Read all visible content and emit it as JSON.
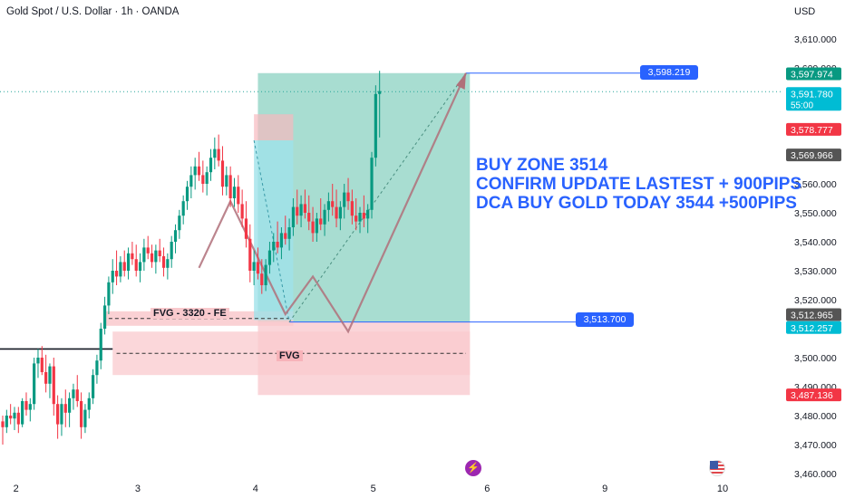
{
  "header": {
    "title": "Gold Spot / U.S. Dollar · 1h · OANDA",
    "currency": "USD"
  },
  "annotations": {
    "fvg_upper_label": "FVG - 3320 - FE",
    "fvg_lower_label": "FVG",
    "promo_lines": [
      "BUY ZONE 3514",
      "CONFIRM UPDATE LASTEST + 900PIPS",
      "DCA BUY GOLD TODAY 3544 +500PIPS"
    ],
    "target_label": "3,598.219",
    "entry_label": "3,513.700"
  },
  "price_badges": [
    {
      "value": "3,597.974",
      "color": "#089981",
      "sub": ""
    },
    {
      "value": "3,591.780",
      "color": "#00bcd4",
      "sub": "55:00"
    },
    {
      "value": "3,578.777",
      "color": "#f23645",
      "sub": ""
    },
    {
      "value": "3,569.966",
      "color": "#555555",
      "sub": ""
    },
    {
      "value": "3,512.965",
      "color": "#555555",
      "sub": ""
    },
    {
      "value": "3,512.257",
      "color": "#00bcd4",
      "sub": ""
    },
    {
      "value": "3,487.136",
      "color": "#f23645",
      "sub": ""
    }
  ],
  "colors": {
    "up": "#089981",
    "down": "#f23645",
    "target_zone": "#9fd9cc",
    "stop_zone": "#f7b9bf",
    "fvg_zone": "#f9c9cd",
    "accent_blue": "#2962ff",
    "text_blue": "#2962ff",
    "path": "#b0707a"
  },
  "icons": [
    "lightning-event-icon",
    "us-flag-icon"
  ],
  "chart_data": {
    "type": "candlestick",
    "symbol": "Gold Spot / U.S. Dollar",
    "interval": "1h",
    "ylim": [
      3460,
      3615
    ],
    "y_ticks": [
      3460,
      3470,
      3480,
      3490,
      3500,
      3510,
      3520,
      3530,
      3540,
      3550,
      3560,
      3570,
      3580,
      3590,
      3600,
      3610
    ],
    "y_tick_labels": [
      "3,460.000",
      "3,470.000",
      "3,480.000",
      "3,490.000",
      "3,500.000",
      "3,510.000",
      "3,520.000",
      "3,530.000",
      "3,540.000",
      "3,550.000",
      "3,560.000",
      "3,570.000",
      "3,580.000",
      "3,590.000",
      "3,600.000",
      "3,610.000"
    ],
    "x_tick_labels": [
      "2",
      "3",
      "4",
      "5",
      "6",
      "9",
      "10"
    ],
    "x_tick_index": [
      2,
      33,
      63,
      93,
      122,
      152,
      182
    ],
    "candles": [
      [
        3478,
        3480,
        3470,
        3476
      ],
      [
        3476,
        3482,
        3474,
        3480
      ],
      [
        3480,
        3484,
        3477,
        3479
      ],
      [
        3479,
        3483,
        3475,
        3481
      ],
      [
        3481,
        3483,
        3474,
        3477
      ],
      [
        3477,
        3486,
        3476,
        3485
      ],
      [
        3485,
        3488,
        3480,
        3482
      ],
      [
        3482,
        3486,
        3478,
        3484
      ],
      [
        3484,
        3500,
        3482,
        3498
      ],
      [
        3498,
        3503,
        3493,
        3500
      ],
      [
        3500,
        3504,
        3494,
        3495
      ],
      [
        3495,
        3501,
        3488,
        3491
      ],
      [
        3491,
        3498,
        3486,
        3497
      ],
      [
        3497,
        3500,
        3480,
        3484
      ],
      [
        3484,
        3487,
        3472,
        3477
      ],
      [
        3477,
        3486,
        3473,
        3484
      ],
      [
        3484,
        3489,
        3476,
        3481
      ],
      [
        3481,
        3488,
        3476,
        3486
      ],
      [
        3486,
        3491,
        3482,
        3489
      ],
      [
        3489,
        3494,
        3483,
        3485
      ],
      [
        3485,
        3488,
        3472,
        3476
      ],
      [
        3476,
        3484,
        3474,
        3482
      ],
      [
        3482,
        3488,
        3479,
        3486
      ],
      [
        3486,
        3496,
        3484,
        3494
      ],
      [
        3494,
        3501,
        3491,
        3499
      ],
      [
        3499,
        3512,
        3496,
        3510
      ],
      [
        3510,
        3521,
        3508,
        3518
      ],
      [
        3518,
        3528,
        3515,
        3526
      ],
      [
        3526,
        3534,
        3522,
        3530
      ],
      [
        3530,
        3537,
        3525,
        3528
      ],
      [
        3528,
        3535,
        3526,
        3533
      ],
      [
        3533,
        3537,
        3528,
        3530
      ],
      [
        3530,
        3538,
        3527,
        3536
      ],
      [
        3536,
        3540,
        3532,
        3534
      ],
      [
        3534,
        3539,
        3528,
        3530
      ],
      [
        3530,
        3536,
        3526,
        3533
      ],
      [
        3533,
        3541,
        3530,
        3538
      ],
      [
        3538,
        3542,
        3534,
        3536
      ],
      [
        3536,
        3539,
        3531,
        3533
      ],
      [
        3533,
        3539,
        3529,
        3537
      ],
      [
        3537,
        3541,
        3533,
        3535
      ],
      [
        3535,
        3538,
        3528,
        3531
      ],
      [
        3531,
        3536,
        3527,
        3534
      ],
      [
        3534,
        3542,
        3531,
        3540
      ],
      [
        3540,
        3546,
        3536,
        3544
      ],
      [
        3544,
        3551,
        3541,
        3549
      ],
      [
        3549,
        3556,
        3546,
        3554
      ],
      [
        3554,
        3561,
        3551,
        3559
      ],
      [
        3559,
        3566,
        3555,
        3563
      ],
      [
        3563,
        3569,
        3558,
        3566
      ],
      [
        3566,
        3571,
        3561,
        3563
      ],
      [
        3563,
        3568,
        3557,
        3560
      ],
      [
        3560,
        3566,
        3556,
        3564
      ],
      [
        3564,
        3572,
        3561,
        3569
      ],
      [
        3569,
        3576,
        3565,
        3572
      ],
      [
        3572,
        3577,
        3566,
        3568
      ],
      [
        3568,
        3573,
        3556,
        3559
      ],
      [
        3559,
        3566,
        3556,
        3563
      ],
      [
        3563,
        3566,
        3552,
        3555
      ],
      [
        3555,
        3562,
        3552,
        3559
      ],
      [
        3559,
        3563,
        3550,
        3553
      ],
      [
        3553,
        3558,
        3545,
        3548
      ],
      [
        3548,
        3554,
        3538,
        3541
      ],
      [
        3541,
        3546,
        3526,
        3530
      ],
      [
        3530,
        3537,
        3525,
        3533
      ],
      [
        3533,
        3538,
        3527,
        3529
      ],
      [
        3529,
        3534,
        3522,
        3525
      ],
      [
        3525,
        3534,
        3523,
        3532
      ],
      [
        3532,
        3540,
        3529,
        3537
      ],
      [
        3537,
        3543,
        3533,
        3540
      ],
      [
        3540,
        3547,
        3536,
        3538
      ],
      [
        3538,
        3545,
        3534,
        3543
      ],
      [
        3543,
        3549,
        3539,
        3541
      ],
      [
        3541,
        3548,
        3537,
        3545
      ],
      [
        3545,
        3555,
        3542,
        3552
      ],
      [
        3552,
        3558,
        3546,
        3549
      ],
      [
        3549,
        3556,
        3545,
        3553
      ],
      [
        3553,
        3558,
        3548,
        3550
      ],
      [
        3550,
        3556,
        3544,
        3547
      ],
      [
        3547,
        3552,
        3540,
        3543
      ],
      [
        3543,
        3550,
        3540,
        3548
      ],
      [
        3548,
        3555,
        3544,
        3546
      ],
      [
        3546,
        3553,
        3542,
        3551
      ],
      [
        3551,
        3557,
        3547,
        3554
      ],
      [
        3554,
        3560,
        3549,
        3552
      ],
      [
        3552,
        3558,
        3545,
        3548
      ],
      [
        3548,
        3554,
        3544,
        3552
      ],
      [
        3552,
        3560,
        3548,
        3557
      ],
      [
        3557,
        3562,
        3551,
        3554
      ],
      [
        3554,
        3558,
        3546,
        3549
      ],
      [
        3549,
        3555,
        3544,
        3547
      ],
      [
        3547,
        3552,
        3543,
        3550
      ],
      [
        3550,
        3556,
        3545,
        3548
      ],
      [
        3548,
        3553,
        3543,
        3551
      ],
      [
        3551,
        3571,
        3548,
        3569
      ],
      [
        3569,
        3594,
        3566,
        3591
      ],
      [
        3591,
        3599,
        3576,
        3592
      ]
    ],
    "zones": [
      {
        "name": "FVG - 3320 - FE",
        "from": 3511,
        "to": 3516
      },
      {
        "name": "FVG",
        "from": 3494,
        "to": 3509
      },
      {
        "name": "target",
        "from": 3512.3,
        "to": 3598.2
      },
      {
        "name": "stop",
        "from": 3487.1,
        "to": 3512.3
      }
    ],
    "levels": [
      3598.219,
      3513.7,
      3591.78,
      3503.0
    ]
  }
}
